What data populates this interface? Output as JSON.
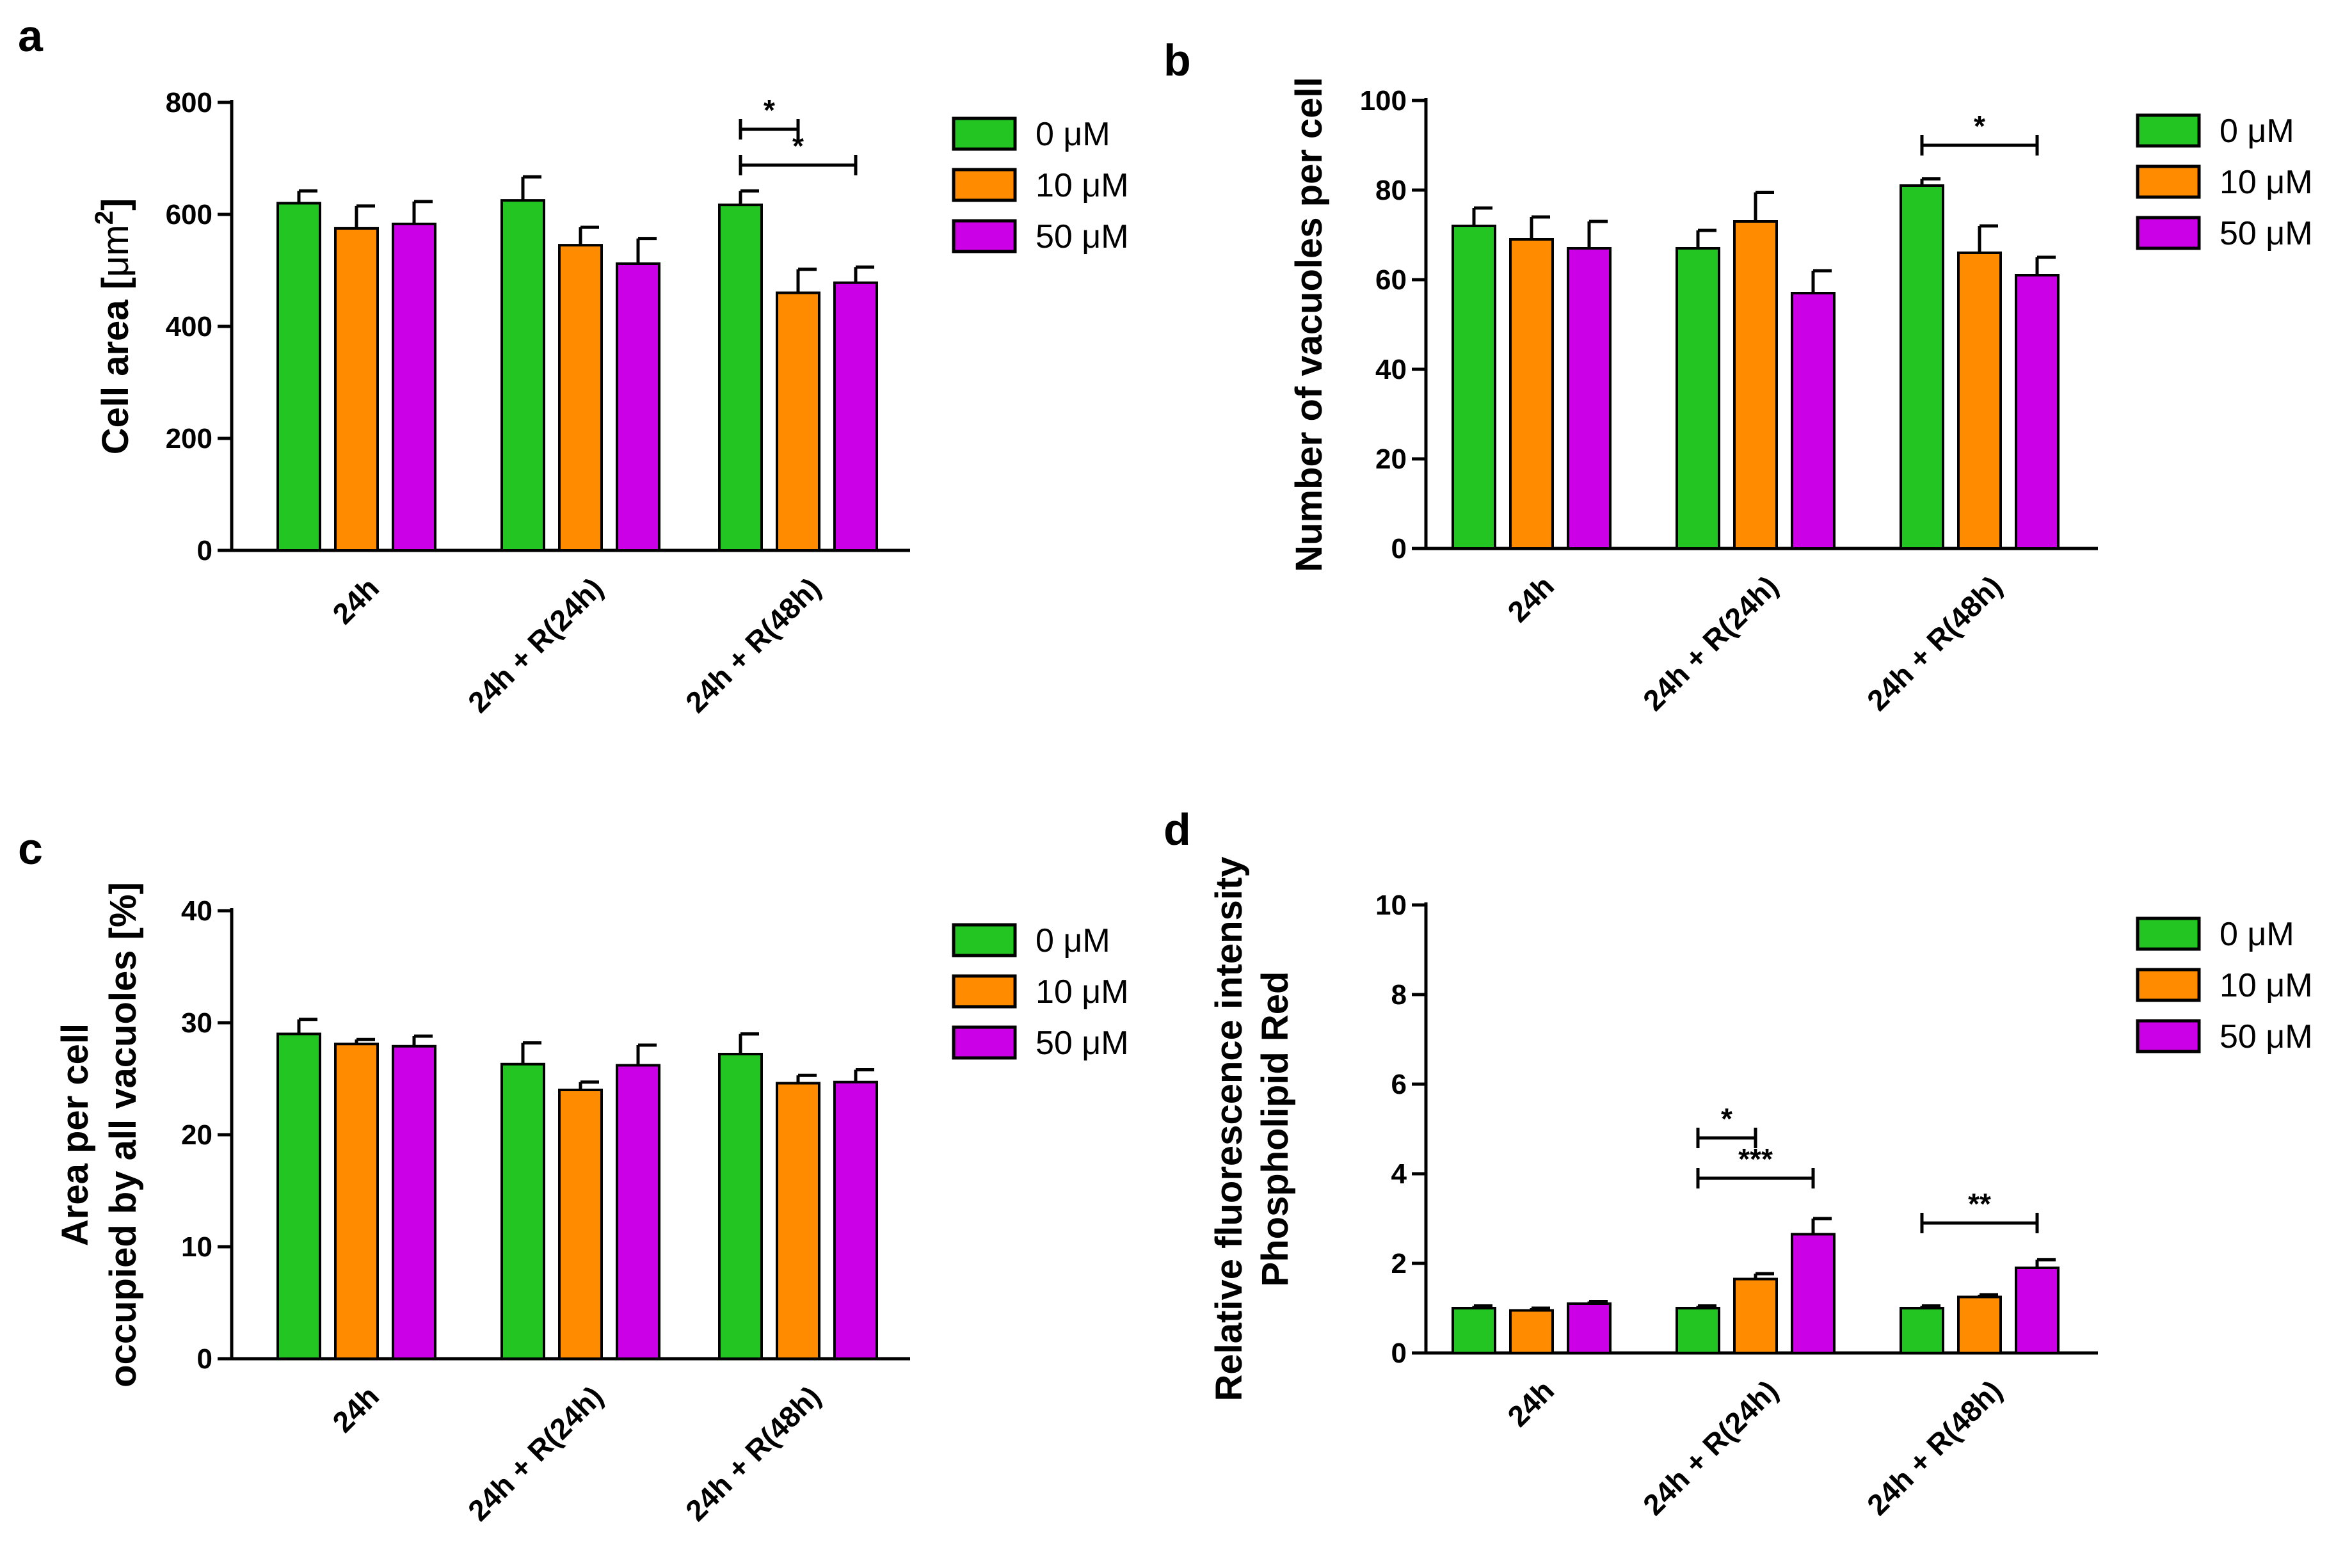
{
  "colors": {
    "series": [
      "#22c522",
      "#ff8c00",
      "#cc00e6"
    ],
    "axis": "#000000"
  },
  "chart_data": [
    {
      "id": "a",
      "type": "bar",
      "panel_label": "a",
      "ylabel": "Cell area [",
      "ylabel_unit": "μm",
      "ylabel_sup": "2",
      "ylabel_close": "]",
      "ylim": [
        0,
        800
      ],
      "yticks": [
        0,
        200,
        400,
        600,
        800
      ],
      "categories": [
        "24h",
        "24h + R(24h)",
        "24h + R(48h)"
      ],
      "series": [
        {
          "name": "0 μM",
          "values": [
            620,
            625,
            617
          ],
          "errors": [
            22,
            42,
            25
          ]
        },
        {
          "name": "10 μM",
          "values": [
            575,
            545,
            460
          ],
          "errors": [
            40,
            32,
            42
          ]
        },
        {
          "name": "50 μM",
          "values": [
            583,
            512,
            478
          ],
          "errors": [
            40,
            45,
            28
          ]
        }
      ],
      "significance": [
        {
          "label": "*",
          "category": 2,
          "from_series": 0,
          "to_series": 1,
          "level": 752
        },
        {
          "label": "*",
          "category": 2,
          "from_series": 0,
          "to_series": 2,
          "level": 688
        }
      ],
      "legend_position": "right"
    },
    {
      "id": "b",
      "type": "bar",
      "panel_label": "b",
      "ylabel": "Number of vacuoles per cell",
      "ylim": [
        0,
        100
      ],
      "yticks": [
        0,
        20,
        40,
        60,
        80,
        100
      ],
      "categories": [
        "24h",
        "24h + R(24h)",
        "24h + R(48h)"
      ],
      "series": [
        {
          "name": "0 μM",
          "values": [
            72,
            67,
            81
          ],
          "errors": [
            4,
            4,
            1.5
          ]
        },
        {
          "name": "10 μM",
          "values": [
            69,
            73,
            66
          ],
          "errors": [
            5,
            6.5,
            6
          ]
        },
        {
          "name": "50 μM",
          "values": [
            67,
            57,
            61
          ],
          "errors": [
            6,
            5,
            4
          ]
        }
      ],
      "significance": [
        {
          "label": "*",
          "category": 2,
          "from_series": 0,
          "to_series": 2,
          "level": 90
        }
      ],
      "legend_position": "right"
    },
    {
      "id": "c",
      "type": "bar",
      "panel_label": "c",
      "ylabel_lines": [
        "Area per cell",
        "occupied by all vacuoles [%]"
      ],
      "ylim": [
        0,
        40
      ],
      "yticks": [
        0,
        10,
        20,
        30,
        40
      ],
      "categories": [
        "24h",
        "24h + R(24h)",
        "24h + R(48h)"
      ],
      "series": [
        {
          "name": "0 μM",
          "values": [
            29.0,
            26.3,
            27.2
          ],
          "errors": [
            1.3,
            1.9,
            1.8
          ]
        },
        {
          "name": "10 μM",
          "values": [
            28.1,
            24.0,
            24.6
          ],
          "errors": [
            0.4,
            0.7,
            0.7
          ]
        },
        {
          "name": "50 μM",
          "values": [
            27.9,
            26.2,
            24.7
          ],
          "errors": [
            0.9,
            1.8,
            1.1
          ]
        }
      ],
      "significance": [],
      "legend_position": "right"
    },
    {
      "id": "d",
      "type": "bar",
      "panel_label": "d",
      "ylabel_lines": [
        "Relative fluorescence intensity",
        "Phospholipid Red"
      ],
      "ylim": [
        0,
        10
      ],
      "yticks": [
        0,
        2,
        4,
        6,
        8,
        10
      ],
      "categories": [
        "24h",
        "24h + R(24h)",
        "24h + R(48h)"
      ],
      "series": [
        {
          "name": "0 μM",
          "values": [
            1.0,
            1.0,
            1.0
          ],
          "errors": [
            0.05,
            0.05,
            0.05
          ]
        },
        {
          "name": "10 μM",
          "values": [
            0.95,
            1.65,
            1.25
          ],
          "errors": [
            0.05,
            0.12,
            0.05
          ]
        },
        {
          "name": "50 μM",
          "values": [
            1.1,
            2.65,
            1.9
          ],
          "errors": [
            0.05,
            0.35,
            0.18
          ]
        }
      ],
      "significance": [
        {
          "label": "*",
          "category": 1,
          "from_series": 0,
          "to_series": 1,
          "level": 4.8
        },
        {
          "label": "***",
          "category": 1,
          "from_series": 0,
          "to_series": 2,
          "level": 3.9
        },
        {
          "label": "**",
          "category": 2,
          "from_series": 0,
          "to_series": 2,
          "level": 2.9
        }
      ],
      "legend_position": "right"
    }
  ]
}
